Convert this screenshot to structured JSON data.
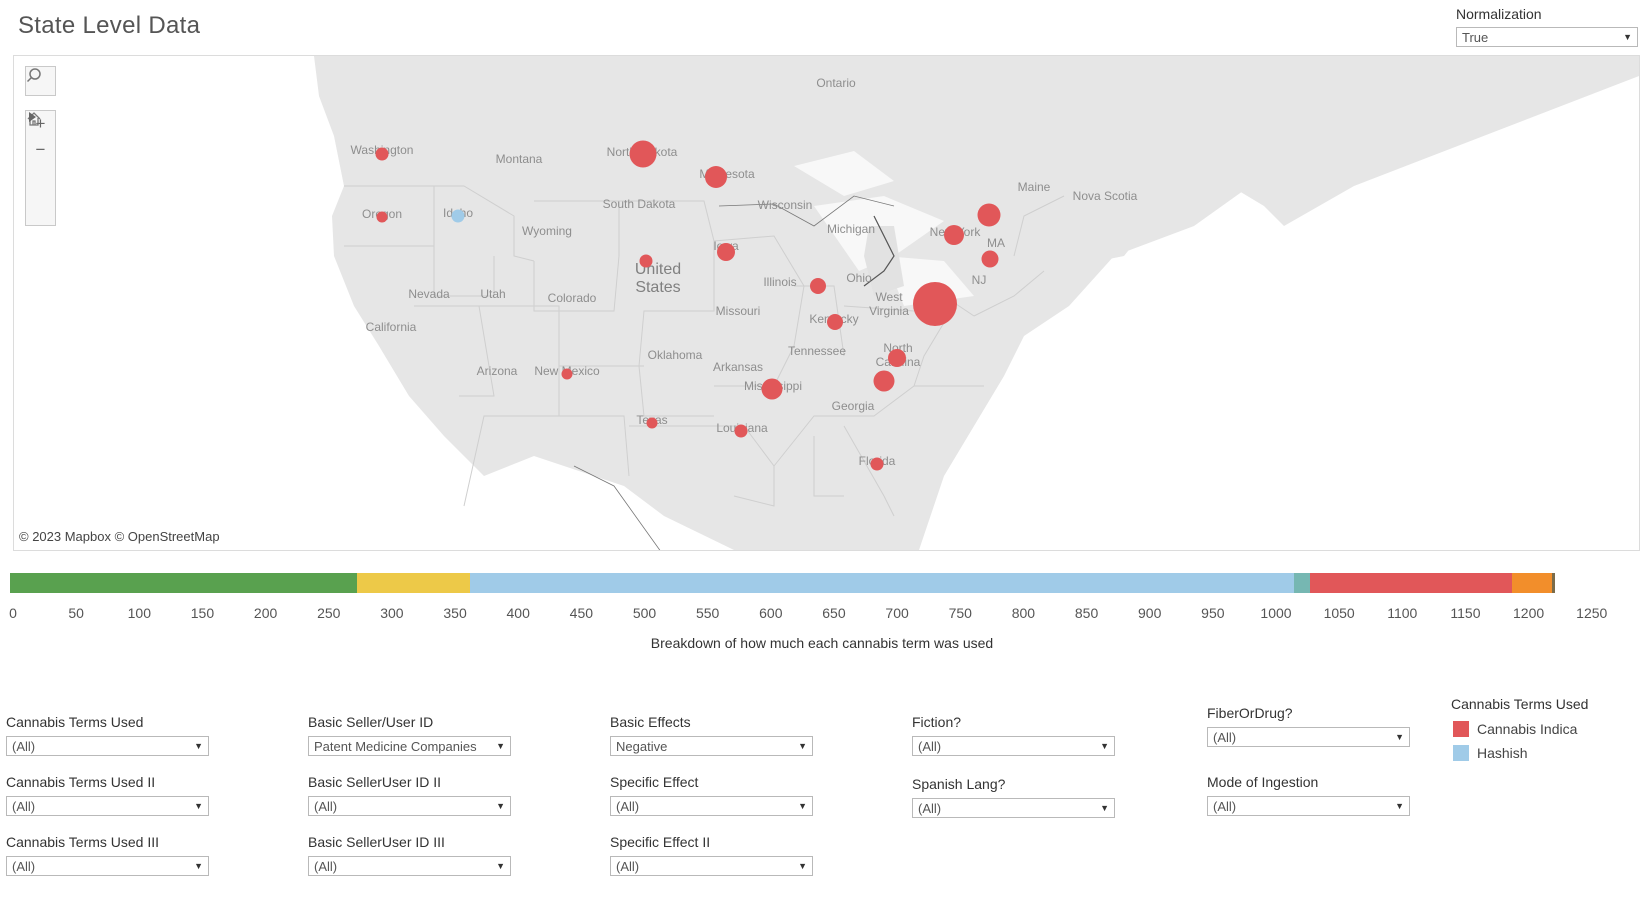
{
  "header": {
    "title": "State Level Data"
  },
  "normalization": {
    "label": "Normalization",
    "value": "True"
  },
  "map": {
    "attribution": "© 2023 Mapbox © OpenStreetMap",
    "labels": {
      "ontario": "Ontario",
      "montana": "Montana",
      "washington": "Washington",
      "oregon": "Oregon",
      "idaho": "Idaho",
      "wyoming": "Wyoming",
      "north_dakota": "North Dakota",
      "south_dakota": "South Dakota",
      "minnesota": "Minnesota",
      "wisconsin": "Wisconsin",
      "michigan": "Michigan",
      "iowa": "Iowa",
      "illinois": "Illinois",
      "ohio": "Ohio",
      "nevada": "Nevada",
      "utah": "Utah",
      "colorado": "Colorado",
      "united_states": "United States",
      "california": "California",
      "missouri": "Missouri",
      "kentucky": "Kentucky",
      "west_virginia": "West Virginia",
      "tennessee": "Tennessee",
      "oklahoma": "Oklahoma",
      "arkansas": "Arkansas",
      "arizona": "Arizona",
      "new_mexico": "New Mexico",
      "mississippi": "Mississippi",
      "georgia": "Georgia",
      "north_carolina": "North Carolina",
      "texas": "Texas",
      "louisiana": "Louisiana",
      "florida": "Florida",
      "new_york": "New York",
      "ma": "MA",
      "nj": "NJ",
      "maine": "Maine",
      "nova_scotia": "Nova Scotia"
    },
    "tool_icons": [
      "search-icon",
      "zoom-in-icon",
      "zoom-out-icon",
      "home-icon",
      "play-icon"
    ]
  },
  "breakdown": {
    "caption": "Breakdown of how much each cannabis term was used",
    "axis_ticks": [
      "0",
      "50",
      "100",
      "150",
      "200",
      "250",
      "300",
      "350",
      "400",
      "450",
      "500",
      "550",
      "600",
      "650",
      "700",
      "750",
      "800",
      "850",
      "900",
      "950",
      "1000",
      "1050",
      "1100",
      "1150",
      "1200",
      "1250"
    ],
    "segments": [
      {
        "start": 0,
        "end": 275,
        "color": "#59a14f"
      },
      {
        "start": 275,
        "end": 364,
        "color": "#edc948"
      },
      {
        "start": 364,
        "end": 1017,
        "color": "#a0cbe8"
      },
      {
        "start": 1017,
        "end": 1029,
        "color": "#76b7b2"
      },
      {
        "start": 1029,
        "end": 1189,
        "color": "#e15759"
      },
      {
        "start": 1189,
        "end": 1221,
        "color": "#f28e2b"
      },
      {
        "start": 1221,
        "end": 1223,
        "color": "#7b6c4a"
      }
    ]
  },
  "filters": {
    "cannabis_terms_used": {
      "label": "Cannabis Terms Used",
      "value": "(All)"
    },
    "cannabis_terms_used_ii": {
      "label": "Cannabis Terms Used II",
      "value": "(All)"
    },
    "cannabis_terms_used_iii": {
      "label": "Cannabis Terms Used III",
      "value": "(All)"
    },
    "basic_seller_user_id": {
      "label": "Basic Seller/User ID",
      "value": "Patent Medicine Companies"
    },
    "basic_seller_user_id_ii": {
      "label": "Basic SellerUser ID II",
      "value": "(All)"
    },
    "basic_seller_user_id_iii": {
      "label": "Basic SellerUser ID III",
      "value": "(All)"
    },
    "basic_effects": {
      "label": "Basic Effects",
      "value": "Negative"
    },
    "specific_effect": {
      "label": "Specific Effect",
      "value": "(All)"
    },
    "specific_effect_ii": {
      "label": "Specific Effect II",
      "value": "(All)"
    },
    "fiction": {
      "label": "Fiction?",
      "value": "(All)"
    },
    "spanish_lang": {
      "label": "Spanish Lang?",
      "value": "(All)"
    },
    "fiber_or_drug": {
      "label": "FiberOrDrug?",
      "value": "(All)"
    },
    "mode_of_ingestion": {
      "label": "Mode of Ingestion",
      "value": "(All)"
    }
  },
  "legend": {
    "title": "Cannabis Terms Used",
    "items": [
      {
        "label": "Cannabis Indica",
        "color": "#e15759"
      },
      {
        "label": "Hashish",
        "color": "#a0cbe8"
      }
    ]
  },
  "colors": {
    "indica": "#e15759",
    "hashish": "#a0cbe8",
    "land": "#e9e9e9",
    "border": "#cfcfcf"
  }
}
